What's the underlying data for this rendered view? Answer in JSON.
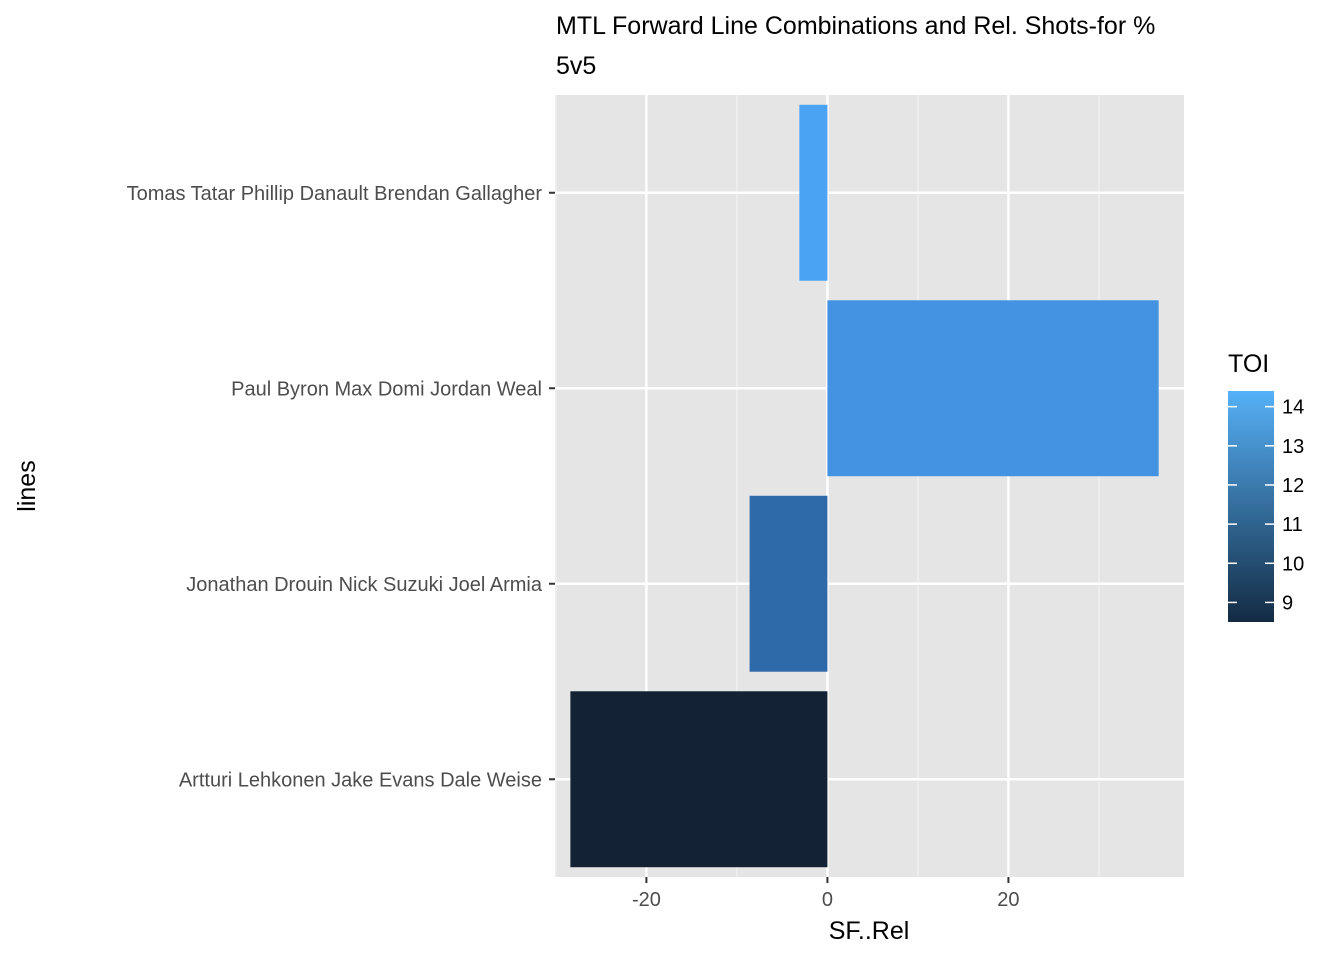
{
  "chart_data": {
    "type": "bar",
    "orientation": "horizontal",
    "title": "MTL Forward Line Combinations and Rel. Shots-for %",
    "subtitle": "5v5",
    "xlabel": "SF..Rel",
    "ylabel": "lines",
    "categories": [
      "Tomas Tatar Phillip Danault Brendan Gallagher",
      "Paul Byron Max Domi Jordan Weal",
      "Jonathan Drouin Nick Suzuki Joel Armia",
      "Artturi Lehkonen Jake Evans Dale Weise"
    ],
    "values": [
      -3.1,
      36.6,
      -8.6,
      -28.4
    ],
    "toi": [
      14.3,
      13.6,
      12.1,
      8.6
    ],
    "bar_colors": [
      "#4aa3f3",
      "#4493e2",
      "#2e6aa9",
      "#132235"
    ],
    "xlim": [
      -30.1,
      39.4
    ],
    "xticks": [
      -20,
      0,
      20
    ],
    "xtick_labels": [
      "-20",
      "0",
      "20"
    ],
    "grid": true,
    "panel_background": "#e5e5e5",
    "legend": {
      "title": "TOI",
      "position": "right",
      "range": [
        8.5,
        14.4
      ],
      "ticks": [
        9,
        10,
        11,
        12,
        13,
        14
      ],
      "tick_labels": [
        "9",
        "10",
        "11",
        "12",
        "13",
        "14"
      ],
      "color_low": "#132b43",
      "color_high": "#56b1f7"
    }
  }
}
